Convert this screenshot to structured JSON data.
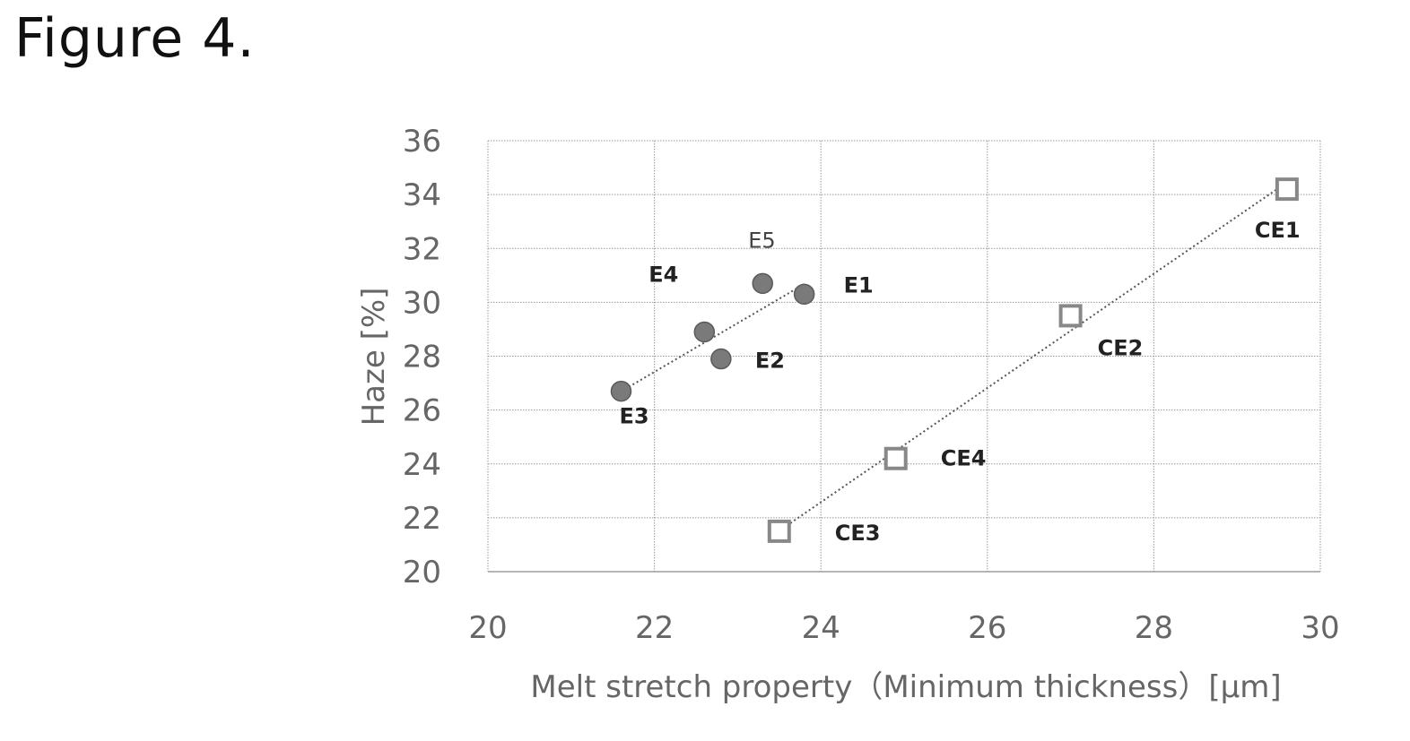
{
  "figure_title": "Figure 4.",
  "chart_data": {
    "type": "scatter",
    "xlabel": "Melt stretch property（Minimum  thickness）[μm]",
    "ylabel": "Haze [%]",
    "xlim": [
      20,
      30
    ],
    "ylim": [
      20,
      36
    ],
    "x_ticks": [
      "20",
      "22",
      "24",
      "26",
      "28",
      "30"
    ],
    "y_ticks": [
      "20",
      "22",
      "24",
      "26",
      "28",
      "30",
      "32",
      "34",
      "36"
    ],
    "grid": true,
    "series": [
      {
        "marker": "filled-circle",
        "color": "#7a7a7a",
        "trendline": "dotted",
        "points": [
          {
            "label": "E1",
            "x": 23.8,
            "y": 30.3
          },
          {
            "label": "E2",
            "x": 22.8,
            "y": 27.9
          },
          {
            "label": "E3",
            "x": 21.6,
            "y": 26.7
          },
          {
            "label": "E4",
            "x": 22.6,
            "y": 28.9
          },
          {
            "label": "E5",
            "x": 23.3,
            "y": 30.7
          }
        ]
      },
      {
        "marker": "open-square",
        "color": "#888888",
        "trendline": "dotted",
        "points": [
          {
            "label": "CE1",
            "x": 29.6,
            "y": 34.2
          },
          {
            "label": "CE2",
            "x": 27.0,
            "y": 29.5
          },
          {
            "label": "CE3",
            "x": 23.5,
            "y": 21.5
          },
          {
            "label": "CE4",
            "x": 24.9,
            "y": 24.2
          }
        ]
      }
    ]
  }
}
